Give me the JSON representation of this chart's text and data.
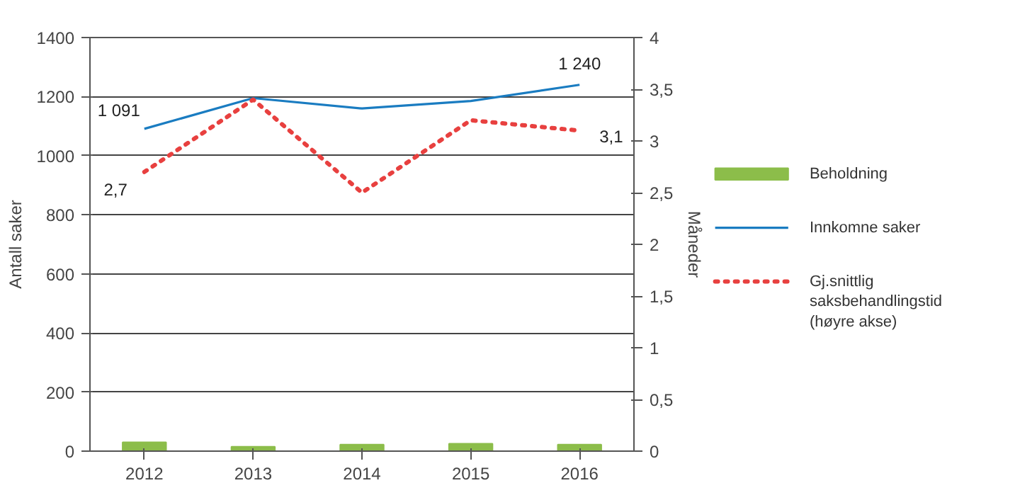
{
  "chart_data": {
    "type": "bar",
    "categories": [
      "2012",
      "2013",
      "2014",
      "2015",
      "2016"
    ],
    "ylabel": "Antall saker",
    "y2label": "Måneder",
    "ylim": [
      0,
      1400
    ],
    "yticks": [
      0,
      200,
      400,
      600,
      800,
      1000,
      1200,
      1400
    ],
    "y2lim": [
      0,
      4
    ],
    "y2ticks": [
      0,
      {
        "value": 0.5,
        "label": "0,5"
      },
      1,
      {
        "value": 1.5,
        "label": "1,5"
      },
      2,
      {
        "value": 2.5,
        "label": "2,5"
      },
      3,
      {
        "value": 3.5,
        "label": "3,5"
      },
      4
    ],
    "grid": "y",
    "legend": "right",
    "series": [
      {
        "name": "Beholdning",
        "color": "#8cbd4a",
        "values": [
          30,
          15,
          22,
          25,
          22
        ]
      },
      {
        "name": "Innkomne saker",
        "type": "line",
        "color": "#1a7cc1",
        "line_style": "solid",
        "values": [
          1091,
          1195,
          1160,
          1185,
          1240
        ],
        "value_labels": [
          "1 091",
          null,
          null,
          null,
          "1 240"
        ]
      },
      {
        "name": "Gj.snittlig saksbehandlingstid (høyre akse)",
        "type": "line",
        "axis": "y2",
        "color": "#e8403f",
        "line_style": "dotted",
        "values": [
          2.7,
          3.4,
          2.5,
          3.2,
          3.1
        ],
        "value_labels": [
          "2,7",
          null,
          null,
          null,
          "3,1"
        ]
      }
    ]
  }
}
